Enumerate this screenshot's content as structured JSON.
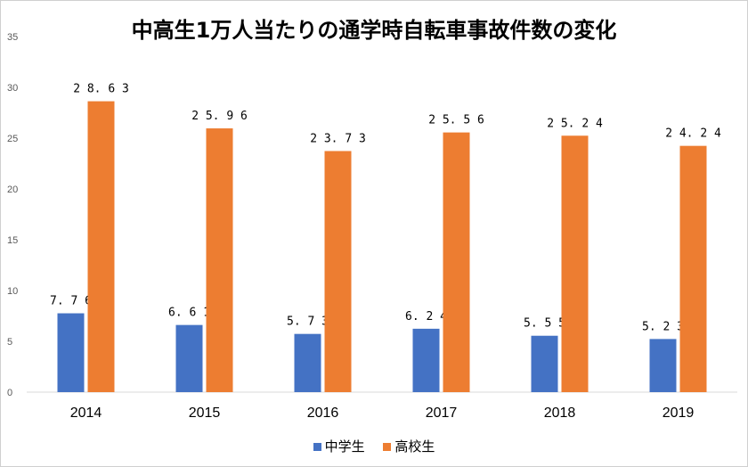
{
  "chart_data": {
    "type": "bar",
    "title": "中高生1万人当たりの通学時自転車事故件数の変化",
    "categories": [
      "2014",
      "2015",
      "2016",
      "2017",
      "2018",
      "2019"
    ],
    "series": [
      {
        "name": "中学生",
        "color": "#4472c4",
        "values": [
          7.76,
          6.61,
          5.73,
          6.24,
          5.55,
          5.23
        ],
        "labels": [
          "7.76",
          "6.61",
          "5.73",
          "6.24",
          "5.55",
          "5.23"
        ]
      },
      {
        "name": "高校生",
        "color": "#ed7d31",
        "values": [
          28.63,
          25.96,
          23.73,
          25.56,
          25.24,
          24.24
        ],
        "labels": [
          "28.63",
          "25.96",
          "23.73",
          "25.56",
          "25.24",
          "24.24"
        ]
      }
    ],
    "yticks": [
      "0",
      "5",
      "10",
      "15",
      "20",
      "25",
      "30",
      "35"
    ],
    "ylim": [
      0,
      35
    ],
    "xlabel": "",
    "ylabel": "",
    "grid": false,
    "legend": "bottom"
  }
}
